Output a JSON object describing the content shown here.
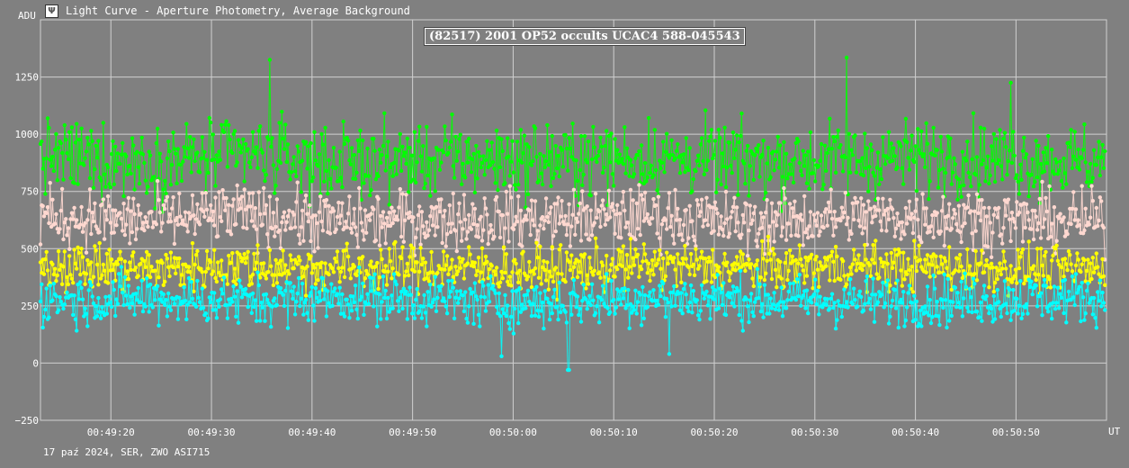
{
  "window": {
    "icon": "light-curve-app-icon",
    "title": "Light Curve - Aperture Photometry, Average Background"
  },
  "chart_data": {
    "type": "scatter",
    "title": "(82517) 2001 OP52 occults UCAC4 588-045543",
    "ylabel": "ADU",
    "xlabel": "UT",
    "footer": "17 paź 2024, SER, ZWO ASI715",
    "ylim": [
      -250,
      1500
    ],
    "xlim": [
      "00:49:13",
      "00:50:59"
    ],
    "y_ticks": [
      "1250",
      "1000",
      "750",
      "500",
      "250",
      "0",
      "−250"
    ],
    "x_ticks": [
      "00:49:20",
      "00:49:30",
      "00:49:40",
      "00:49:50",
      "00:50:00",
      "00:50:10",
      "00:50:20",
      "00:50:30",
      "00:50:40",
      "00:50:50"
    ],
    "grid": true,
    "background": "#808080",
    "grid_color": "#d0d0d0",
    "sample_interval_s": 0.12,
    "series": [
      {
        "color": "#00ff00",
        "mean": 890,
        "spread": 95,
        "values_sampled_every_10s": [
          905,
          880,
          910,
          875,
          895,
          885,
          900,
          880,
          890,
          905,
          885
        ]
      },
      {
        "color": "#ffd8d0",
        "mean": 630,
        "spread": 75,
        "values_sampled_every_10s": [
          640,
          620,
          650,
          615,
          630,
          625,
          645,
          610,
          635,
          640,
          620
        ]
      },
      {
        "color": "#ffff00",
        "mean": 420,
        "spread": 60,
        "values_sampled_every_10s": [
          430,
          410,
          425,
          415,
          420,
          405,
          430,
          415,
          425,
          420,
          410
        ]
      },
      {
        "color": "#00ffff",
        "mean": 280,
        "spread": 65,
        "values_sampled_every_10s": [
          275,
          285,
          270,
          290,
          275,
          260,
          285,
          280,
          270,
          275,
          285
        ]
      }
    ],
    "notable_points": [
      {
        "series": 0,
        "x": "00:49:35.8",
        "y": 1325
      },
      {
        "series": 0,
        "x": "00:50:33.2",
        "y": 1335
      },
      {
        "series": 0,
        "x": "00:50:49.5",
        "y": 1225
      },
      {
        "series": 3,
        "x": "00:50:05.5",
        "y": -30
      },
      {
        "series": 3,
        "x": "00:49:58.8",
        "y": 30
      },
      {
        "series": 3,
        "x": "00:50:15.5",
        "y": 40
      }
    ]
  }
}
